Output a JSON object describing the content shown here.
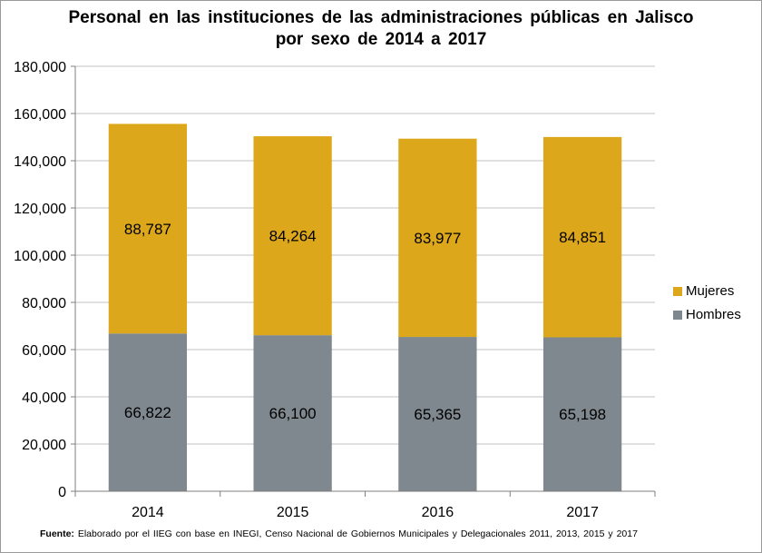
{
  "colors": {
    "mujeres": "#dca71a",
    "hombres": "#7f878f",
    "axis": "#7f7f7f",
    "grid": "#c0c0c0"
  },
  "chart_data": {
    "type": "bar",
    "stacked": true,
    "title": "Personal en las instituciones de las administraciones públicas en Jalisco por sexo de 2014 a 2017",
    "xlabel": "",
    "ylabel": "",
    "categories": [
      "2014",
      "2015",
      "2016",
      "2017"
    ],
    "series": [
      {
        "name": "Hombres",
        "values": [
          66822,
          66100,
          65365,
          65198
        ],
        "labels": [
          "66,822",
          "66,100",
          "65,365",
          "65,198"
        ]
      },
      {
        "name": "Mujeres",
        "values": [
          88787,
          84264,
          83977,
          84851
        ],
        "labels": [
          "88,787",
          "84,264",
          "83,977",
          "84,851"
        ]
      }
    ],
    "ylim": [
      0,
      180000
    ],
    "yticks": [
      "0",
      "20,000",
      "40,000",
      "60,000",
      "80,000",
      "100,000",
      "120,000",
      "140,000",
      "160,000",
      "180,000"
    ],
    "grid": true,
    "legend": "right"
  },
  "source": {
    "label": "Fuente:",
    "text": "Elaborado por el IIEG con base en INEGI, Censo Nacional de Gobiernos Municipales y Delegacionales 2011, 2013, 2015 y 2017"
  }
}
